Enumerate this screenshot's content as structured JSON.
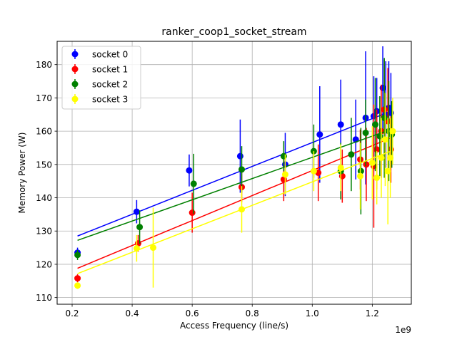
{
  "chart_data": {
    "type": "scatter",
    "title": "ranker_coop1_socket_stream",
    "xlabel": "Access Frequency (line/s)",
    "ylabel": "Memory Power (W)",
    "x_scale_label": "1e9",
    "xlim": [
      0.15,
      1.33
    ],
    "ylim": [
      108,
      187
    ],
    "xticks": [
      0.2,
      0.4,
      0.6,
      0.8,
      1.0,
      1.2
    ],
    "xtick_labels": [
      "0.2",
      "0.4",
      "0.6",
      "0.8",
      "1.0",
      "1.2"
    ],
    "yticks": [
      110,
      120,
      130,
      140,
      150,
      160,
      170,
      180
    ],
    "ytick_labels": [
      "110",
      "120",
      "130",
      "140",
      "150",
      "160",
      "170",
      "180"
    ],
    "grid": true,
    "legend_position": "top-left",
    "series": [
      {
        "name": "socket 0",
        "color": "#0000ff",
        "points": [
          {
            "x": 0.218,
            "y": 123.5,
            "err": 1.5
          },
          {
            "x": 0.415,
            "y": 135.8,
            "err": 3.5
          },
          {
            "x": 0.59,
            "y": 148.2,
            "err": 4.8
          },
          {
            "x": 0.76,
            "y": 152.5,
            "err": 11.0
          },
          {
            "x": 0.91,
            "y": 150.0,
            "err": 9.5
          },
          {
            "x": 1.025,
            "y": 159.0,
            "err": 14.5
          },
          {
            "x": 1.095,
            "y": 162.0,
            "err": 13.5
          },
          {
            "x": 1.145,
            "y": 157.5,
            "err": 12.0
          },
          {
            "x": 1.178,
            "y": 164.0,
            "err": 20.0
          },
          {
            "x": 1.205,
            "y": 164.5,
            "err": 12.0
          },
          {
            "x": 1.215,
            "y": 166.0,
            "err": 10.0
          },
          {
            "x": 1.235,
            "y": 173.0,
            "err": 12.5
          },
          {
            "x": 1.245,
            "y": 165.0,
            "err": 16.0
          },
          {
            "x": 1.255,
            "y": 167.0,
            "err": 14.0
          },
          {
            "x": 1.262,
            "y": 165.5,
            "err": 12.0
          }
        ],
        "fit": {
          "x0": 0.218,
          "y0": 128.5,
          "x1": 1.262,
          "y1": 166.0
        }
      },
      {
        "name": "socket 1",
        "color": "#ff0000",
        "points": [
          {
            "x": 0.218,
            "y": 115.8,
            "err": 1.2
          },
          {
            "x": 0.42,
            "y": 126.3,
            "err": 2.5
          },
          {
            "x": 0.6,
            "y": 135.5,
            "err": 6.0
          },
          {
            "x": 0.765,
            "y": 143.2,
            "err": 4.5
          },
          {
            "x": 0.905,
            "y": 145.5,
            "err": 6.5
          },
          {
            "x": 1.02,
            "y": 147.5,
            "err": 8.5
          },
          {
            "x": 1.1,
            "y": 146.5,
            "err": 8.0
          },
          {
            "x": 1.16,
            "y": 151.5,
            "err": 9.0
          },
          {
            "x": 1.18,
            "y": 150.0,
            "err": 11.0
          },
          {
            "x": 1.205,
            "y": 149.5,
            "err": 18.5
          },
          {
            "x": 1.215,
            "y": 154.5,
            "err": 12.0
          },
          {
            "x": 1.23,
            "y": 160.0,
            "err": 14.0
          },
          {
            "x": 1.24,
            "y": 166.5,
            "err": 15.0
          },
          {
            "x": 1.252,
            "y": 163.0,
            "err": 16.0
          },
          {
            "x": 1.262,
            "y": 154.5,
            "err": 10.0
          }
        ],
        "fit": {
          "x0": 0.218,
          "y0": 118.8,
          "x1": 1.262,
          "y1": 158.0
        }
      },
      {
        "name": "socket 2",
        "color": "#008000",
        "points": [
          {
            "x": 0.218,
            "y": 122.8,
            "err": 1.5
          },
          {
            "x": 0.425,
            "y": 131.2,
            "err": 5.0
          },
          {
            "x": 0.605,
            "y": 144.2,
            "err": 9.0
          },
          {
            "x": 0.765,
            "y": 148.5,
            "err": 7.0
          },
          {
            "x": 0.905,
            "y": 152.5,
            "err": 4.5
          },
          {
            "x": 1.005,
            "y": 154.0,
            "err": 8.0
          },
          {
            "x": 1.095,
            "y": 148.0,
            "err": 8.5
          },
          {
            "x": 1.13,
            "y": 153.0,
            "err": 11.0
          },
          {
            "x": 1.162,
            "y": 148.0,
            "err": 13.0
          },
          {
            "x": 1.178,
            "y": 159.5,
            "err": 10.0
          },
          {
            "x": 1.21,
            "y": 162.0,
            "err": 14.0
          },
          {
            "x": 1.225,
            "y": 158.5,
            "err": 12.0
          },
          {
            "x": 1.24,
            "y": 164.0,
            "err": 18.0
          },
          {
            "x": 1.255,
            "y": 160.0,
            "err": 15.0
          },
          {
            "x": 1.265,
            "y": 159.0,
            "err": 10.0
          }
        ],
        "fit": {
          "x0": 0.218,
          "y0": 127.2,
          "x1": 1.262,
          "y1": 160.5
        }
      },
      {
        "name": "socket 3",
        "color": "#ffff00",
        "points": [
          {
            "x": 0.218,
            "y": 113.6,
            "err": 1.0
          },
          {
            "x": 0.415,
            "y": 124.8,
            "err": 4.0
          },
          {
            "x": 0.47,
            "y": 125.0,
            "err": 12.0
          },
          {
            "x": 0.765,
            "y": 136.5,
            "err": 7.0
          },
          {
            "x": 0.91,
            "y": 147.0,
            "err": 6.0
          },
          {
            "x": 1.005,
            "y": 148.0,
            "err": 6.0
          },
          {
            "x": 1.095,
            "y": 149.0,
            "err": 7.0
          },
          {
            "x": 1.16,
            "y": 146.5,
            "err": 10.0
          },
          {
            "x": 1.2,
            "y": 150.5,
            "err": 11.0
          },
          {
            "x": 1.215,
            "y": 146.0,
            "err": 8.0
          },
          {
            "x": 1.23,
            "y": 152.0,
            "err": 12.0
          },
          {
            "x": 1.243,
            "y": 157.5,
            "err": 14.0
          },
          {
            "x": 1.252,
            "y": 148.0,
            "err": 16.0
          },
          {
            "x": 1.26,
            "y": 152.0,
            "err": 12.0
          },
          {
            "x": 1.268,
            "y": 160.0,
            "err": 10.0
          }
        ],
        "fit": {
          "x0": 0.218,
          "y0": 117.2,
          "x1": 1.262,
          "y1": 154.0
        }
      }
    ]
  }
}
